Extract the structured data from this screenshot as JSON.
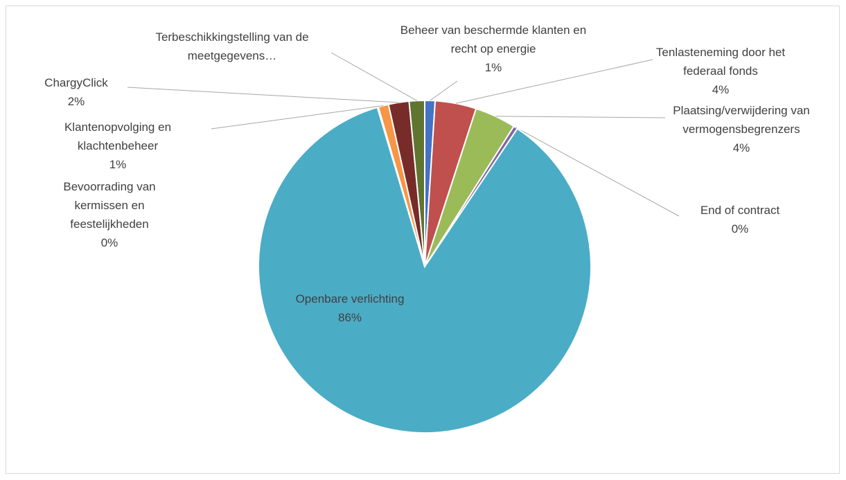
{
  "chart_data": {
    "type": "pie",
    "categories": [
      "Beheer van beschermde klanten en recht op energie",
      "Tenlasteneming door het federaal fonds",
      "Plaatsing/verwijdering van vermogensbegrenzers",
      "End of contract",
      "Openbare verlichting",
      "Bevoorrading van kermissen en feestelijkheden",
      "Klantenopvolging en klachtenbeheer",
      "ChargyClick",
      "Terbeschikkingstelling van de meetgegevens…"
    ],
    "values": [
      1,
      4,
      4,
      0.4,
      86,
      0.1,
      1,
      2,
      1.5
    ],
    "value_labels": [
      "1%",
      "4%",
      "4%",
      "0%",
      "86%",
      "0%",
      "1%",
      "2%",
      null
    ],
    "colors": [
      "#4472c4",
      "#c0504d",
      "#9bbb59",
      "#8064a2",
      "#4bacc6",
      "#f79646",
      "#f79646",
      "#772c2a",
      "#5f7530"
    ]
  }
}
